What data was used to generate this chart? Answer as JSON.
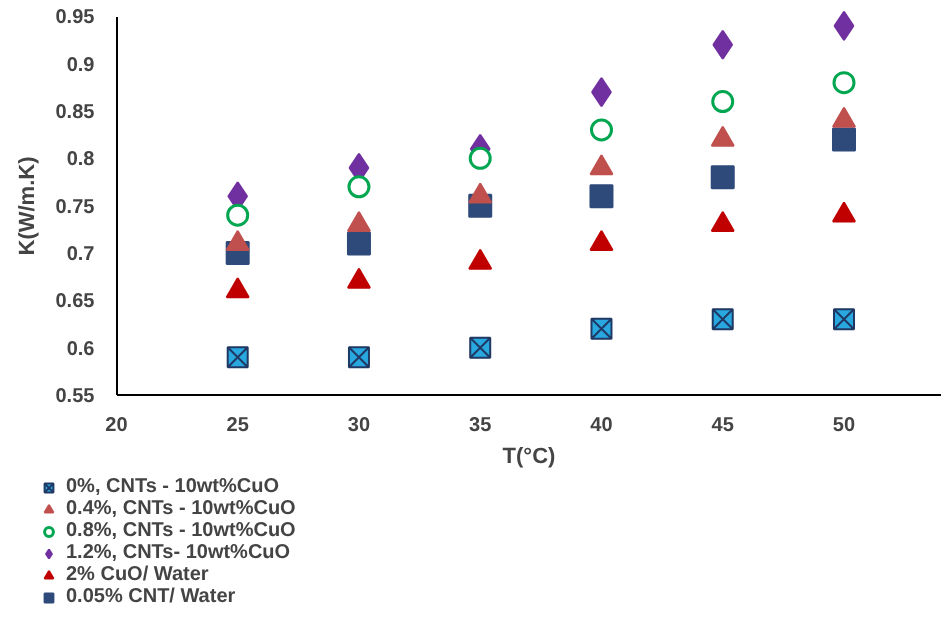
{
  "chart_data": {
    "type": "scatter",
    "xlabel": "T(°C)",
    "ylabel": "K(W/m.K)",
    "x": [
      25,
      30,
      35,
      40,
      45,
      50
    ],
    "xlim": [
      20,
      54
    ],
    "xticks": [
      20,
      25,
      30,
      35,
      40,
      45,
      50
    ],
    "ylim": [
      0.55,
      0.95
    ],
    "yticks": [
      0.55,
      0.6,
      0.65,
      0.7,
      0.75,
      0.8,
      0.85,
      0.9,
      0.95
    ],
    "grid": false,
    "legend": "bottom left",
    "series": [
      {
        "name": "0%, CNTs - 10wt%CuO",
        "color": "#29a8e0",
        "marker": "cross",
        "values": [
          0.59,
          0.59,
          0.6,
          0.62,
          0.63,
          0.63
        ]
      },
      {
        "name": "0.4%, CNTs - 10wt%CuO",
        "color": "#c0504d",
        "marker": "triangle",
        "values": [
          0.71,
          0.73,
          0.76,
          0.79,
          0.82,
          0.84
        ]
      },
      {
        "name": "0.8%, CNTs - 10wt%CuO",
        "color": "#00a650",
        "marker": "circle",
        "values": [
          0.74,
          0.77,
          0.8,
          0.83,
          0.86,
          0.88
        ]
      },
      {
        "name": "1.2%, CNTs- 10wt%CuO",
        "color": "#7030a0",
        "marker": "diamond",
        "values": [
          0.76,
          0.79,
          0.81,
          0.87,
          0.92,
          0.94
        ]
      },
      {
        "name": "2% CuO/ Water",
        "color": "#c00000",
        "marker": "triangle",
        "values": [
          0.66,
          0.67,
          0.69,
          0.71,
          0.73,
          0.74
        ]
      },
      {
        "name": "0.05% CNT/ Water",
        "color": "#2e4a7a",
        "marker": "square",
        "values": [
          0.7,
          0.71,
          0.75,
          0.76,
          0.78,
          0.82
        ]
      }
    ]
  }
}
